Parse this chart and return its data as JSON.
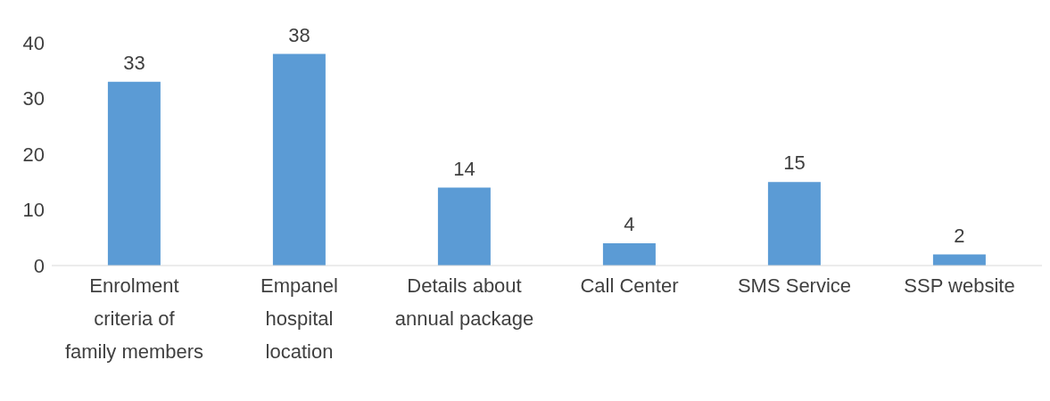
{
  "chart_data": {
    "type": "bar",
    "categories": [
      "Enrolment criteria of family members",
      "Empanel hospital location",
      "Details about annual package",
      "Call Center",
      "SMS Service",
      "SSP website"
    ],
    "values": [
      33,
      38,
      14,
      4,
      15,
      2
    ],
    "color": "#5b9bd5",
    "ylim": [
      0,
      40
    ],
    "yticks": [
      0,
      10,
      20,
      30,
      40
    ],
    "grid": false,
    "data_labels": true
  }
}
